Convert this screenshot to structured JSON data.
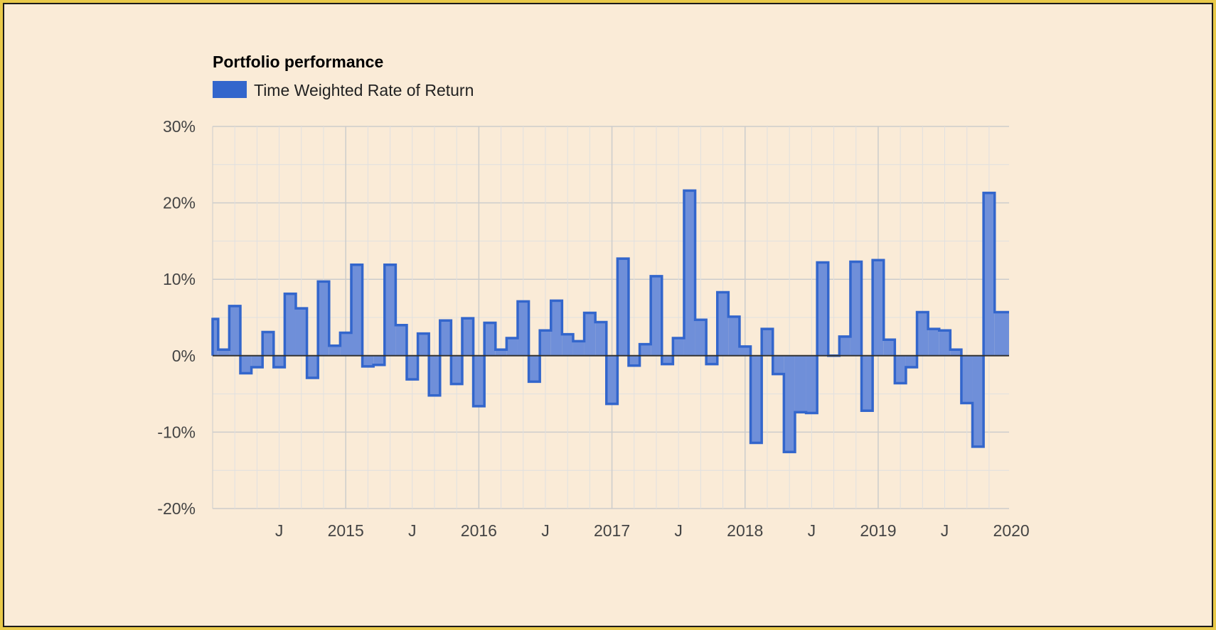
{
  "chart_data": {
    "type": "area",
    "title": "Portfolio performance",
    "legend": {
      "position": "top-left",
      "entries": [
        "Time Weighted Rate of Return"
      ]
    },
    "grid": true,
    "colors": {
      "series": "#3366cc",
      "fill": "#6f8fd9",
      "zero_line": "#333333",
      "grid": "#cccccc",
      "minor_grid": "#e0e0e0",
      "background": "#faebd7",
      "border_outer": "#e8c94a"
    },
    "y_axis": {
      "ylim": [
        -20,
        30
      ],
      "ticks": [
        "30%",
        "20%",
        "10%",
        "0%",
        "-10%",
        "-20%"
      ],
      "tick_values": [
        30,
        20,
        10,
        0,
        -10,
        -20
      ]
    },
    "x_axis": {
      "tick_labels": [
        "J",
        "2015",
        "J",
        "2016",
        "J",
        "2017",
        "J",
        "2018",
        "J",
        "2019",
        "J",
        "2020"
      ],
      "tick_months": [
        6,
        12,
        18,
        24,
        30,
        36,
        42,
        48,
        54,
        60,
        66,
        72
      ]
    },
    "x_range_months": [
      0.0,
      71.8
    ],
    "series": [
      {
        "name": "Time Weighted Rate of Return",
        "step_months": [
          0,
          0.5,
          1.5,
          2.5,
          3.5,
          4.5,
          5.5,
          6.5,
          7.5,
          8.5,
          9.5,
          10.5,
          11.5,
          12.5,
          13.5,
          14.5,
          15.5,
          16.5,
          17.5,
          18.5,
          19.5,
          20.5,
          21.5,
          22.5,
          23.5,
          24.5,
          25.5,
          26.5,
          27.5,
          28.5,
          29.5,
          30.5,
          31.5,
          32.5,
          33.5,
          34.5,
          35.5,
          36.5,
          37.5,
          38.5,
          39.5,
          40.5,
          41.5,
          42.5,
          43.5,
          44.5,
          45.5,
          46.5,
          47.5,
          48.5,
          49.5,
          50.5,
          51.5,
          52.5,
          53.5,
          54.5,
          55.5,
          56.5,
          57.5,
          58.5,
          59.5,
          60.5,
          61.5,
          62.5,
          63.5,
          64.5,
          65.5,
          66.5,
          67.5,
          68.5,
          69.5,
          70.5
        ],
        "values": [
          4.8,
          0.8,
          6.5,
          -2.3,
          -1.5,
          3.1,
          -1.5,
          8.1,
          6.2,
          -2.9,
          9.7,
          1.3,
          3.0,
          11.9,
          -1.4,
          -1.2,
          11.9,
          4.0,
          -3.1,
          2.9,
          -5.2,
          4.6,
          -3.7,
          4.9,
          -6.6,
          4.3,
          0.8,
          2.3,
          7.1,
          -3.4,
          3.3,
          7.2,
          2.8,
          1.9,
          5.6,
          4.4,
          -6.3,
          12.7,
          -1.3,
          1.5,
          10.4,
          -1.1,
          2.3,
          21.6,
          4.7,
          -1.1,
          8.3,
          5.1,
          1.2,
          -11.4,
          3.5,
          -2.4,
          -12.6,
          -7.4,
          -7.5,
          12.2,
          0.0,
          2.5,
          12.3,
          -7.2,
          12.5,
          2.1,
          -3.6,
          -1.5,
          5.7,
          3.5,
          3.3,
          0.8,
          -6.2,
          -11.9,
          21.3,
          5.7
        ]
      }
    ]
  }
}
